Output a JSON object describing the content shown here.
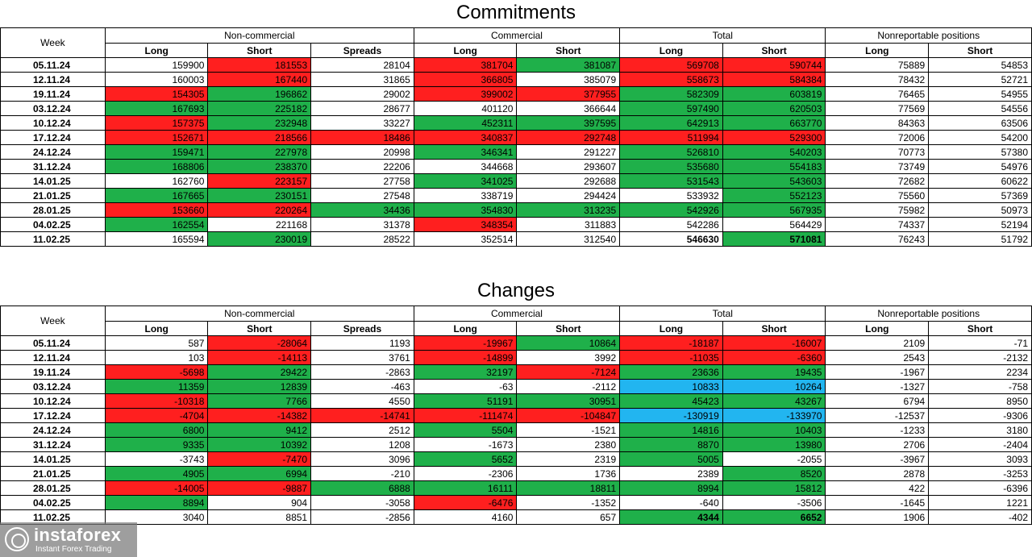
{
  "commitments": {
    "title": "Commitments",
    "headers": {
      "week": "Week",
      "groups": [
        "Non-commercial",
        "Commercial",
        "Total",
        "Nonreportable positions"
      ],
      "subs": [
        "Long",
        "Short",
        "Spreads",
        "Long",
        "Short",
        "Long",
        "Short",
        "Long",
        "Short"
      ]
    },
    "rows": [
      [
        "05.11.24",
        "159900",
        "181553",
        "28104",
        "381704",
        "381087",
        "569708",
        "590744",
        "75889",
        "54853"
      ],
      [
        "12.11.24",
        "160003",
        "167440",
        "31865",
        "366805",
        "385079",
        "558673",
        "584384",
        "78432",
        "52721"
      ],
      [
        "19.11.24",
        "154305",
        "196862",
        "29002",
        "399002",
        "377955",
        "582309",
        "603819",
        "76465",
        "54955"
      ],
      [
        "03.12.24",
        "167693",
        "225182",
        "28677",
        "401120",
        "366644",
        "597490",
        "620503",
        "77569",
        "54556"
      ],
      [
        "10.12.24",
        "157375",
        "232948",
        "33227",
        "452311",
        "397595",
        "642913",
        "663770",
        "84363",
        "63506"
      ],
      [
        "17.12.24",
        "152671",
        "218566",
        "18486",
        "340837",
        "292748",
        "511994",
        "529300",
        "72006",
        "54200"
      ],
      [
        "24.12.24",
        "159471",
        "227978",
        "20998",
        "346341",
        "291227",
        "526810",
        "540203",
        "70773",
        "57380"
      ],
      [
        "31.12.24",
        "168806",
        "238370",
        "22206",
        "344668",
        "293607",
        "535680",
        "554183",
        "73749",
        "54976"
      ],
      [
        "14.01.25",
        "162760",
        "223157",
        "27758",
        "341025",
        "292688",
        "531543",
        "543603",
        "72682",
        "60622"
      ],
      [
        "21.01.25",
        "167665",
        "230151",
        "27548",
        "338719",
        "294424",
        "533932",
        "552123",
        "75560",
        "57369"
      ],
      [
        "28.01.25",
        "153660",
        "220264",
        "34436",
        "354830",
        "313235",
        "542926",
        "567935",
        "75982",
        "50973"
      ],
      [
        "04.02.25",
        "162554",
        "221168",
        "31378",
        "348354",
        "311883",
        "542286",
        "564429",
        "74337",
        "52194"
      ],
      [
        "11.02.25",
        "165594",
        "230019",
        "28522",
        "352514",
        "312540",
        "546630",
        "571081",
        "76243",
        "51792"
      ]
    ],
    "colors": [
      [
        "",
        "",
        "r",
        "",
        "r",
        "g",
        "r",
        "r",
        "",
        ""
      ],
      [
        "",
        "",
        "r",
        "",
        "r",
        "",
        "r",
        "r",
        "",
        ""
      ],
      [
        "",
        "r",
        "g",
        "",
        "r",
        "r",
        "g",
        "g",
        "",
        ""
      ],
      [
        "",
        "g",
        "g",
        "",
        "",
        "",
        "g",
        "g",
        "",
        ""
      ],
      [
        "",
        "r",
        "g",
        "",
        "g",
        "g",
        "g",
        "g",
        "",
        ""
      ],
      [
        "",
        "r",
        "r",
        "r",
        "r",
        "r",
        "r",
        "r",
        "",
        ""
      ],
      [
        "",
        "g",
        "g",
        "",
        "g",
        "",
        "g",
        "g",
        "",
        ""
      ],
      [
        "",
        "g",
        "g",
        "",
        "",
        "",
        "g",
        "g",
        "",
        ""
      ],
      [
        "",
        "",
        "r",
        "",
        "g",
        "",
        "g",
        "g",
        "",
        ""
      ],
      [
        "",
        "g",
        "g",
        "",
        "",
        "",
        "",
        "g",
        "",
        ""
      ],
      [
        "",
        "r",
        "r",
        "g",
        "g",
        "g",
        "g",
        "g",
        "",
        ""
      ],
      [
        "",
        "g",
        "",
        "",
        "r",
        "",
        "",
        "",
        "",
        ""
      ],
      [
        "",
        "",
        "g",
        "",
        "",
        "",
        "",
        "g",
        "",
        ""
      ]
    ],
    "bold_cells": [
      [
        12,
        6
      ],
      [
        12,
        7
      ]
    ]
  },
  "changes": {
    "title": "Changes",
    "headers": {
      "week": "Week",
      "groups": [
        "Non-commercial",
        "Commercial",
        "Total",
        "Nonreportable positions"
      ],
      "subs": [
        "Long",
        "Short",
        "Spreads",
        "Long",
        "Short",
        "Long",
        "Short",
        "Long",
        "Short"
      ]
    },
    "rows": [
      [
        "05.11.24",
        "587",
        "-28064",
        "1193",
        "-19967",
        "10864",
        "-18187",
        "-16007",
        "2109",
        "-71"
      ],
      [
        "12.11.24",
        "103",
        "-14113",
        "3761",
        "-14899",
        "3992",
        "-11035",
        "-6360",
        "2543",
        "-2132"
      ],
      [
        "19.11.24",
        "-5698",
        "29422",
        "-2863",
        "32197",
        "-7124",
        "23636",
        "19435",
        "-1967",
        "2234"
      ],
      [
        "03.12.24",
        "11359",
        "12839",
        "-463",
        "-63",
        "-2112",
        "10833",
        "10264",
        "-1327",
        "-758"
      ],
      [
        "10.12.24",
        "-10318",
        "7766",
        "4550",
        "51191",
        "30951",
        "45423",
        "43267",
        "6794",
        "8950"
      ],
      [
        "17.12.24",
        "-4704",
        "-14382",
        "-14741",
        "-111474",
        "-104847",
        "-130919",
        "-133970",
        "-12537",
        "-9306"
      ],
      [
        "24.12.24",
        "6800",
        "9412",
        "2512",
        "5504",
        "-1521",
        "14816",
        "10403",
        "-1233",
        "3180"
      ],
      [
        "31.12.24",
        "9335",
        "10392",
        "1208",
        "-1673",
        "2380",
        "8870",
        "13980",
        "2706",
        "-2404"
      ],
      [
        "14.01.25",
        "-3743",
        "-7470",
        "3096",
        "5652",
        "2319",
        "5005",
        "-2055",
        "-3967",
        "3093"
      ],
      [
        "21.01.25",
        "4905",
        "6994",
        "-210",
        "-2306",
        "1736",
        "2389",
        "8520",
        "2878",
        "-3253"
      ],
      [
        "28.01.25",
        "-14005",
        "-9887",
        "6888",
        "16111",
        "18811",
        "8994",
        "15812",
        "422",
        "-6396"
      ],
      [
        "04.02.25",
        "8894",
        "904",
        "-3058",
        "-6476",
        "-1352",
        "-640",
        "-3506",
        "-1645",
        "1221"
      ],
      [
        "11.02.25",
        "3040",
        "8851",
        "-2856",
        "4160",
        "657",
        "4344",
        "6652",
        "1906",
        "-402"
      ]
    ],
    "colors": [
      [
        "",
        "",
        "r",
        "",
        "r",
        "g",
        "r",
        "r",
        "",
        ""
      ],
      [
        "",
        "",
        "r",
        "",
        "r",
        "",
        "r",
        "r",
        "",
        ""
      ],
      [
        "",
        "r",
        "g",
        "",
        "g",
        "r",
        "g",
        "g",
        "",
        ""
      ],
      [
        "",
        "g",
        "g",
        "",
        "",
        "",
        "b",
        "b",
        "",
        ""
      ],
      [
        "",
        "r",
        "g",
        "",
        "g",
        "g",
        "g",
        "g",
        "",
        ""
      ],
      [
        "",
        "r",
        "r",
        "r",
        "r",
        "r",
        "b",
        "b",
        "",
        ""
      ],
      [
        "",
        "g",
        "g",
        "",
        "g",
        "",
        "g",
        "g",
        "",
        ""
      ],
      [
        "",
        "g",
        "g",
        "",
        "",
        "",
        "g",
        "g",
        "",
        ""
      ],
      [
        "",
        "",
        "r",
        "",
        "g",
        "",
        "g",
        "",
        "",
        ""
      ],
      [
        "",
        "g",
        "g",
        "",
        "",
        "",
        "",
        "g",
        "",
        ""
      ],
      [
        "",
        "r",
        "r",
        "g",
        "g",
        "g",
        "g",
        "g",
        "",
        ""
      ],
      [
        "",
        "g",
        "",
        "",
        "r",
        "",
        "",
        "",
        "",
        ""
      ],
      [
        "",
        "",
        "",
        "",
        "",
        "",
        "g",
        "g",
        "",
        ""
      ]
    ],
    "bold_cells": [
      [
        12,
        6
      ],
      [
        12,
        7
      ]
    ]
  },
  "watermark": {
    "name": "instaforex",
    "tagline": "Instant Forex Trading",
    "icon": "instaforex-logo-icon"
  },
  "palette": {
    "red": "#ff1f1f",
    "green": "#1fb04a",
    "blue": "#22b5f0"
  }
}
